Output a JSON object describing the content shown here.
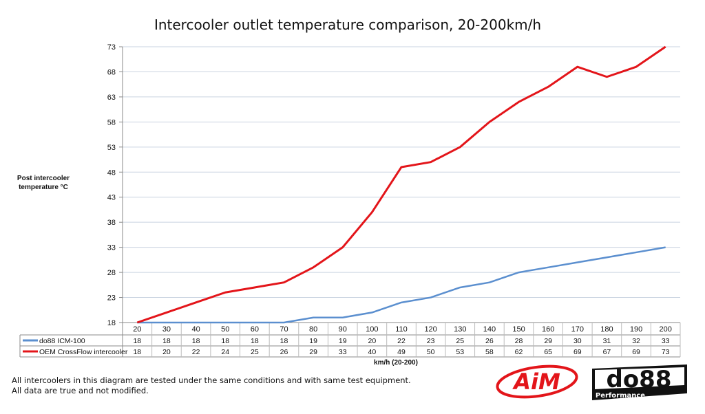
{
  "chart_data": {
    "type": "line",
    "title": "Intercooler outlet temperature comparison, 20-200km/h",
    "xlabel": "km/h (20-200)",
    "ylabel": "Post intercooler temperature °C",
    "categories": [
      20,
      30,
      40,
      50,
      60,
      70,
      80,
      90,
      100,
      110,
      120,
      130,
      140,
      150,
      160,
      170,
      180,
      190,
      200
    ],
    "yticks": [
      18,
      23,
      28,
      33,
      38,
      43,
      48,
      53,
      58,
      63,
      68,
      73
    ],
    "ylim": [
      18,
      73
    ],
    "grid": true,
    "legend": "data-table",
    "series": [
      {
        "name": "do88 ICM-100",
        "color": "#5b8fcf",
        "values": [
          18,
          18,
          18,
          18,
          18,
          18,
          19,
          19,
          20,
          22,
          23,
          25,
          26,
          28,
          29,
          30,
          31,
          32,
          33
        ]
      },
      {
        "name": "OEM CrossFlow intercooler",
        "color": "#e3151a",
        "values": [
          18,
          20,
          22,
          24,
          25,
          26,
          29,
          33,
          40,
          49,
          50,
          53,
          58,
          62,
          65,
          69,
          67,
          69,
          73
        ]
      }
    ]
  },
  "footnote": [
    "All intercoolers in this diagram are tested under the same conditions and with same test equipment.",
    "All data are true and not modified."
  ],
  "logos": {
    "aim": "AiM",
    "do88": "do88",
    "do88_sub": "Performance"
  }
}
